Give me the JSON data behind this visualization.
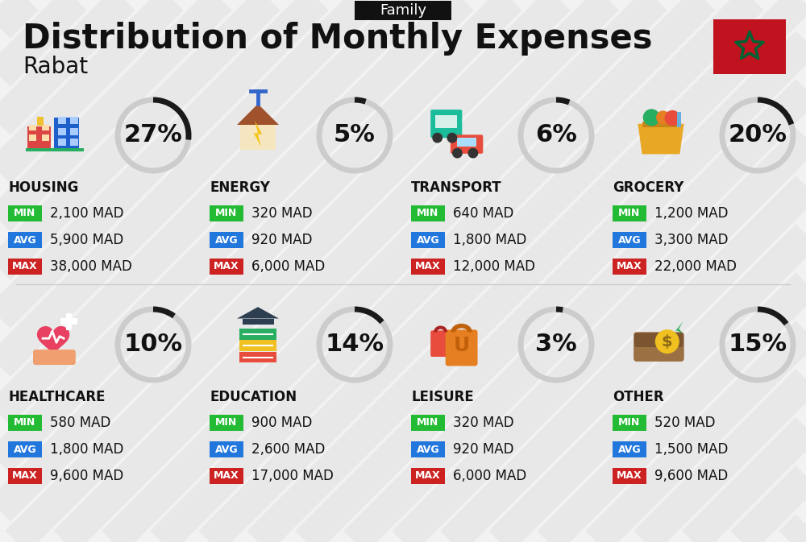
{
  "title": "Distribution of Monthly Expenses",
  "subtitle": "Rabat",
  "tag": "Family",
  "bg_color": "#f2f2f2",
  "categories": [
    {
      "name": "HOUSING",
      "percent": 27,
      "min_val": "2,100 MAD",
      "avg_val": "5,900 MAD",
      "max_val": "38,000 MAD",
      "icon": "housing",
      "row": 0,
      "col": 0
    },
    {
      "name": "ENERGY",
      "percent": 5,
      "min_val": "320 MAD",
      "avg_val": "920 MAD",
      "max_val": "6,000 MAD",
      "icon": "energy",
      "row": 0,
      "col": 1
    },
    {
      "name": "TRANSPORT",
      "percent": 6,
      "min_val": "640 MAD",
      "avg_val": "1,800 MAD",
      "max_val": "12,000 MAD",
      "icon": "transport",
      "row": 0,
      "col": 2
    },
    {
      "name": "GROCERY",
      "percent": 20,
      "min_val": "1,200 MAD",
      "avg_val": "3,300 MAD",
      "max_val": "22,000 MAD",
      "icon": "grocery",
      "row": 0,
      "col": 3
    },
    {
      "name": "HEALTHCARE",
      "percent": 10,
      "min_val": "580 MAD",
      "avg_val": "1,800 MAD",
      "max_val": "9,600 MAD",
      "icon": "healthcare",
      "row": 1,
      "col": 0
    },
    {
      "name": "EDUCATION",
      "percent": 14,
      "min_val": "900 MAD",
      "avg_val": "2,600 MAD",
      "max_val": "17,000 MAD",
      "icon": "education",
      "row": 1,
      "col": 1
    },
    {
      "name": "LEISURE",
      "percent": 3,
      "min_val": "320 MAD",
      "avg_val": "920 MAD",
      "max_val": "6,000 MAD",
      "icon": "leisure",
      "row": 1,
      "col": 2
    },
    {
      "name": "OTHER",
      "percent": 15,
      "min_val": "520 MAD",
      "avg_val": "1,500 MAD",
      "max_val": "9,600 MAD",
      "icon": "other",
      "row": 1,
      "col": 3
    }
  ],
  "min_color": "#22bb33",
  "avg_color": "#2277dd",
  "max_color": "#cc2222",
  "text_color": "#111111",
  "tag_bg": "#111111",
  "tag_fg": "#ffffff",
  "arc_filled": "#1a1a1a",
  "arc_empty": "#cccccc",
  "arc_lw": 5,
  "title_fontsize": 30,
  "subtitle_fontsize": 20,
  "tag_fontsize": 13,
  "cat_fontsize": 12,
  "val_fontsize": 12,
  "pct_fontsize": 22
}
